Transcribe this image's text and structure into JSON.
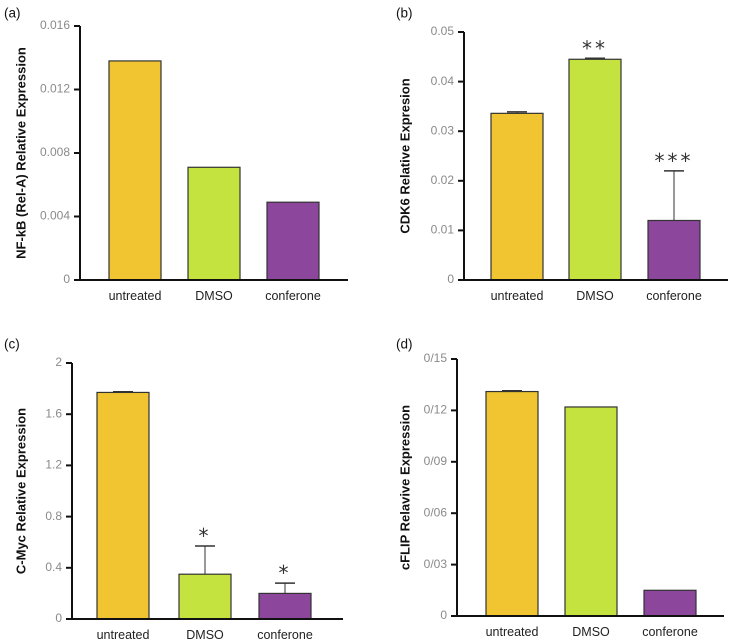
{
  "colors": {
    "untreated": "#f0c531",
    "DMSO": "#c5e33f",
    "conferone": "#8c479d",
    "axis": "#111111",
    "tick_label": "#8a8a8a"
  },
  "chart_data": [
    {
      "panel": "(a)",
      "type": "bar",
      "categories": [
        "untreated",
        "DMSO",
        "conferone"
      ],
      "values": [
        0.0138,
        0.0071,
        0.0049
      ],
      "errors": [
        0,
        0,
        0
      ],
      "significance": [
        "",
        "",
        ""
      ],
      "ylabel": "NF-kB (Rel-A)  Relative Expression",
      "ylim": [
        0,
        0.016
      ],
      "yticks": [
        0,
        0.004,
        0.008,
        0.012,
        0.016
      ],
      "ytick_labels": [
        "0",
        "0.004",
        "0.008",
        "0.012",
        "0.016"
      ]
    },
    {
      "panel": "(b)",
      "type": "bar",
      "categories": [
        "untreated",
        "DMSO",
        "conferone"
      ],
      "values": [
        0.0336,
        0.0445,
        0.012
      ],
      "errors": [
        0.0003,
        0.0002,
        0.01
      ],
      "significance": [
        "",
        "**",
        "***"
      ],
      "ylabel": "CDK6 Relative Expresion",
      "ylim": [
        0,
        0.05
      ],
      "yticks": [
        0,
        0.01,
        0.02,
        0.03,
        0.04,
        0.05
      ],
      "ytick_labels": [
        "0",
        "0.01",
        "0.02",
        "0.03",
        "0.04",
        "0.05"
      ]
    },
    {
      "panel": "(c)",
      "type": "bar",
      "categories": [
        "untreated",
        "DMSO",
        "conferone"
      ],
      "values": [
        1.77,
        0.35,
        0.2
      ],
      "errors": [
        0.005,
        0.22,
        0.08
      ],
      "significance": [
        "",
        "*",
        "*"
      ],
      "ylabel": "C-Myc Relative Expression",
      "ylim": [
        0,
        2
      ],
      "yticks": [
        0,
        0.4,
        0.8,
        1.2,
        1.6,
        2
      ],
      "ytick_labels": [
        "0",
        "0.4",
        "0.8",
        "1.2",
        "1.6",
        "2"
      ]
    },
    {
      "panel": "(d)",
      "type": "bar",
      "categories": [
        "untreated",
        "DMSO",
        "conferone"
      ],
      "values": [
        0.131,
        0.122,
        0.015
      ],
      "errors": [
        0.0005,
        0,
        0
      ],
      "significance": [
        "",
        "",
        ""
      ],
      "ylabel": "cFLIP Relavive Expression",
      "ylim": [
        0,
        0.15
      ],
      "yticks": [
        0,
        0.03,
        0.06,
        0.09,
        0.12,
        0.15
      ],
      "ytick_labels": [
        "0",
        "0/03",
        "0/06",
        "0/09",
        "0/12",
        "0/15"
      ]
    }
  ]
}
